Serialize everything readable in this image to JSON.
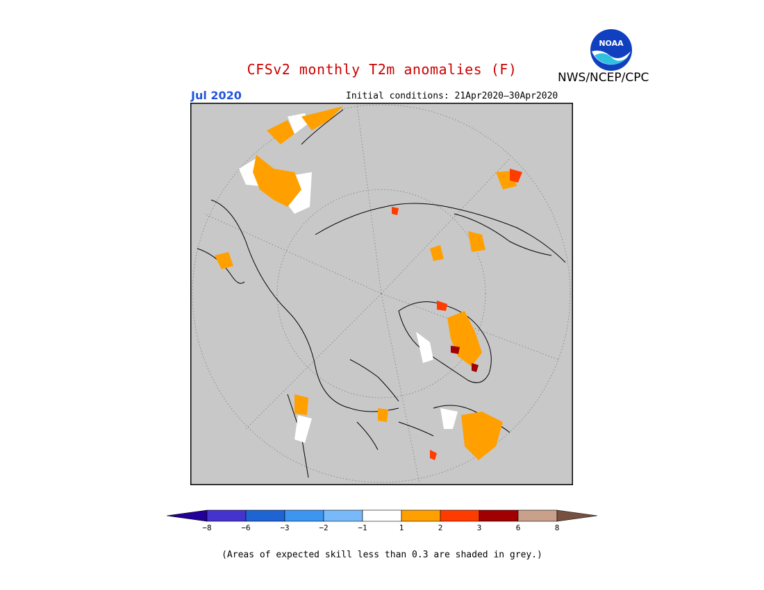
{
  "title": "CFSv2 monthly T2m anomalies (F)",
  "valid_month": "Jul 2020",
  "initial_conditions": "Initial conditions: 21Apr2020–30Apr2020",
  "agency": "NWS/NCEP/CPC",
  "logo_text": "NOAA",
  "footnote": "(Areas of expected skill less than 0.3 are shaded in grey.)",
  "colorbar": {
    "colors": [
      "#220099",
      "#4433cc",
      "#1e64d2",
      "#3c96f0",
      "#78b9fa",
      "#ffffff",
      "#ffa000",
      "#ff3c00",
      "#a00000",
      "#c8a08c",
      "#785040"
    ],
    "tick_labels": [
      "−8",
      "−6",
      "−3",
      "−2",
      "−1",
      "1",
      "2",
      "3",
      "6",
      "8"
    ]
  },
  "map": {
    "background": "#c8c8c8",
    "coast_color": "#000000"
  }
}
